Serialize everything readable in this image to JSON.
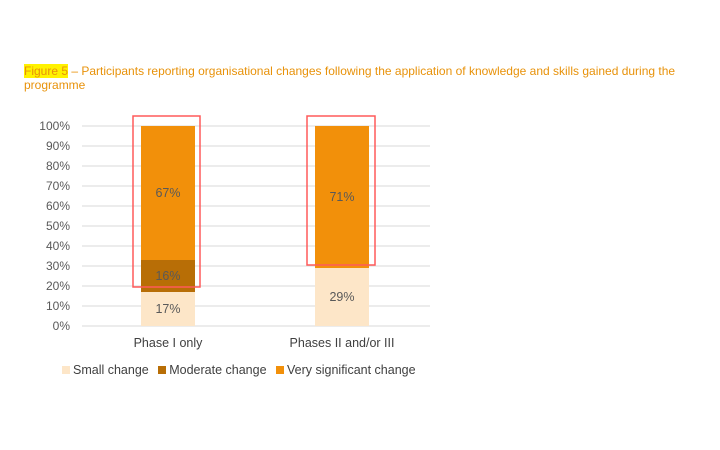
{
  "caption": {
    "figure_label": "Figure 5",
    "text": " – Participants reporting organisational changes following the application of knowledge and skills gained during the programme"
  },
  "colors": {
    "small": "#fde6c8",
    "moderate": "#b86e06",
    "very": "#f2900a",
    "highlight_box": "#ff5a5a",
    "grid": "#d9d9d9"
  },
  "chart_data": {
    "type": "bar",
    "stacked": true,
    "categories": [
      "Phase I only",
      "Phases II and/or III"
    ],
    "series": [
      {
        "name": "Small change",
        "values": [
          17,
          29
        ],
        "labels": [
          "17%",
          "29%"
        ]
      },
      {
        "name": "Moderate change",
        "values": [
          16,
          0
        ],
        "labels": [
          "16%",
          ""
        ]
      },
      {
        "name": "Very significant change",
        "values": [
          67,
          71
        ],
        "labels": [
          "67%",
          "71%"
        ]
      }
    ],
    "ylim": [
      0,
      100
    ],
    "yticks": [
      "0%",
      "10%",
      "20%",
      "30%",
      "40%",
      "50%",
      "60%",
      "70%",
      "80%",
      "90%",
      "100%"
    ],
    "grid": true,
    "legend_position": "bottom-left"
  }
}
